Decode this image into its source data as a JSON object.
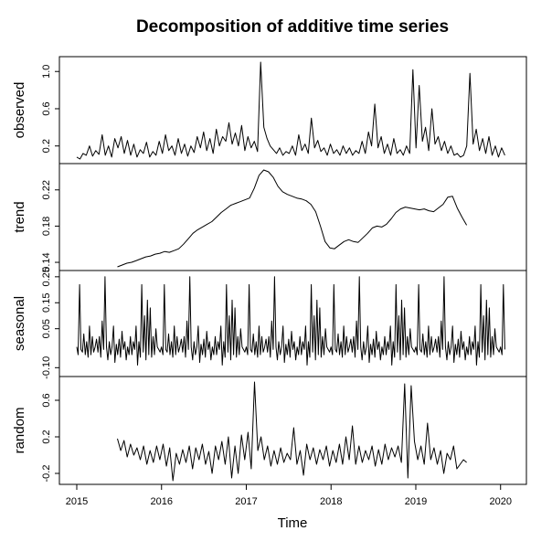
{
  "chart_data": {
    "type": "line",
    "title": "Decomposition of additive time series",
    "xlabel": "Time",
    "x_ticks": [
      "2015",
      "2016",
      "2017",
      "2018",
      "2019",
      "2020"
    ],
    "xlim": [
      2015,
      2020.1
    ],
    "panels": [
      {
        "name": "observed",
        "ylabel": "observed",
        "y_ticks": [
          "0.2",
          "0.6",
          "1.0"
        ],
        "ylim": [
          0.05,
          1.12
        ],
        "x_start": 2015.0,
        "x_end": 2020.05,
        "values": [
          0.08,
          0.06,
          0.12,
          0.1,
          0.2,
          0.09,
          0.15,
          0.11,
          0.32,
          0.1,
          0.2,
          0.08,
          0.28,
          0.18,
          0.3,
          0.12,
          0.26,
          0.1,
          0.22,
          0.08,
          0.16,
          0.12,
          0.24,
          0.08,
          0.14,
          0.1,
          0.25,
          0.12,
          0.32,
          0.15,
          0.2,
          0.1,
          0.28,
          0.12,
          0.22,
          0.09,
          0.2,
          0.13,
          0.3,
          0.18,
          0.35,
          0.15,
          0.28,
          0.12,
          0.38,
          0.2,
          0.3,
          0.25,
          0.45,
          0.22,
          0.34,
          0.2,
          0.42,
          0.15,
          0.3,
          0.18,
          0.25,
          0.14,
          1.1,
          0.4,
          0.28,
          0.2,
          0.16,
          0.12,
          0.18,
          0.1,
          0.14,
          0.12,
          0.2,
          0.1,
          0.32,
          0.15,
          0.22,
          0.12,
          0.5,
          0.18,
          0.26,
          0.14,
          0.18,
          0.1,
          0.22,
          0.12,
          0.16,
          0.1,
          0.2,
          0.12,
          0.18,
          0.1,
          0.15,
          0.12,
          0.25,
          0.12,
          0.35,
          0.2,
          0.65,
          0.18,
          0.3,
          0.12,
          0.22,
          0.1,
          0.28,
          0.12,
          0.16,
          0.1,
          0.2,
          0.12,
          1.02,
          0.18,
          0.85,
          0.25,
          0.4,
          0.15,
          0.6,
          0.22,
          0.3,
          0.15,
          0.25,
          0.12,
          0.2,
          0.1,
          0.12,
          0.08,
          0.1,
          0.2,
          0.98,
          0.22,
          0.38,
          0.15,
          0.28,
          0.12,
          0.3,
          0.1,
          0.2,
          0.08,
          0.18,
          0.1
        ],
        "trend": false
      },
      {
        "name": "trend",
        "ylabel": "trend",
        "y_ticks": [
          "0.14",
          "0.18",
          "0.22"
        ],
        "ylim": [
          0.135,
          0.245
        ],
        "x_start": 2015.48,
        "x_end": 2019.6,
        "values": [
          0.135,
          0.137,
          0.139,
          0.14,
          0.142,
          0.144,
          0.146,
          0.147,
          0.149,
          0.15,
          0.152,
          0.151,
          0.153,
          0.155,
          0.16,
          0.166,
          0.172,
          0.176,
          0.179,
          0.182,
          0.185,
          0.19,
          0.195,
          0.199,
          0.203,
          0.205,
          0.207,
          0.209,
          0.211,
          0.222,
          0.236,
          0.242,
          0.24,
          0.234,
          0.224,
          0.218,
          0.215,
          0.213,
          0.211,
          0.21,
          0.208,
          0.204,
          0.196,
          0.18,
          0.163,
          0.156,
          0.155,
          0.159,
          0.163,
          0.165,
          0.163,
          0.162,
          0.167,
          0.172,
          0.178,
          0.18,
          0.179,
          0.182,
          0.188,
          0.195,
          0.199,
          0.201,
          0.2,
          0.199,
          0.198,
          0.199,
          0.197,
          0.196,
          0.2,
          0.204,
          0.212,
          0.213,
          0.2,
          0.19,
          0.181
        ]
      },
      {
        "name": "seasonal",
        "ylabel": "seasonal",
        "y_ticks": [
          "-0.10",
          "0.05",
          "0.15",
          "0.25"
        ],
        "ylim": [
          -0.12,
          0.26
        ],
        "x_start": 2015.0,
        "x_end": 2020.05,
        "cycle": [
          -0.02,
          -0.05,
          0.22,
          -0.03,
          -0.04,
          0.03,
          -0.05,
          0.0,
          -0.06,
          0.06,
          -0.05,
          0.02,
          -0.04,
          -0.02,
          0.01,
          -0.04,
          0.02,
          -0.06,
          0.08,
          -0.03,
          0.25,
          -0.02,
          -0.07,
          0.0,
          -0.05,
          -0.02,
          0.06,
          -0.08,
          -0.01,
          -0.05,
          0.01,
          -0.06,
          0.04,
          -0.03,
          0.0,
          -0.07,
          -0.02,
          -0.05,
          0.02,
          -0.05,
          0.0,
          -0.03,
          0.06,
          -0.09,
          0.0,
          -0.06,
          0.22,
          -0.04,
          0.1,
          -0.07,
          0.16,
          -0.05,
          0.13,
          -0.06,
          0.02,
          -0.05,
          0.05,
          -0.02,
          -0.03,
          -0.04
        ],
        "cycles": 5.07
      },
      {
        "name": "random",
        "ylabel": "random",
        "y_ticks": [
          "-0.2",
          "0.2",
          "0.6"
        ],
        "ylim": [
          -0.28,
          0.82
        ],
        "x_start": 2015.48,
        "x_end": 2019.6,
        "values": [
          0.18,
          0.05,
          0.16,
          -0.02,
          0.12,
          0.0,
          0.08,
          -0.05,
          0.1,
          -0.1,
          0.05,
          -0.08,
          0.1,
          -0.05,
          0.12,
          -0.12,
          0.08,
          -0.28,
          0.02,
          -0.1,
          0.06,
          -0.08,
          0.1,
          -0.15,
          0.08,
          -0.05,
          0.12,
          -0.1,
          0.04,
          -0.2,
          0.1,
          -0.05,
          0.15,
          -0.1,
          0.2,
          -0.25,
          0.1,
          -0.2,
          0.22,
          -0.05,
          0.25,
          -0.15,
          0.8,
          0.05,
          0.2,
          -0.05,
          0.1,
          -0.12,
          0.05,
          -0.1,
          0.08,
          -0.08,
          0.02,
          -0.05,
          0.3,
          -0.1,
          0.05,
          -0.22,
          0.12,
          -0.05,
          0.08,
          -0.1,
          0.06,
          -0.05,
          0.1,
          -0.12,
          0.05,
          -0.08,
          0.12,
          -0.1,
          0.2,
          -0.05,
          0.32,
          -0.1,
          0.1,
          -0.08,
          0.05,
          -0.05,
          0.1,
          -0.12,
          0.06,
          -0.1,
          0.12,
          -0.05,
          0.08,
          -0.02,
          0.1,
          -0.08,
          0.78,
          -0.25,
          0.76,
          0.15,
          -0.05,
          0.1,
          -0.1,
          0.35,
          -0.05,
          0.08,
          -0.1,
          0.05,
          -0.2,
          0.02,
          -0.05,
          0.1,
          -0.15,
          -0.1,
          -0.05,
          -0.08
        ]
      }
    ]
  }
}
